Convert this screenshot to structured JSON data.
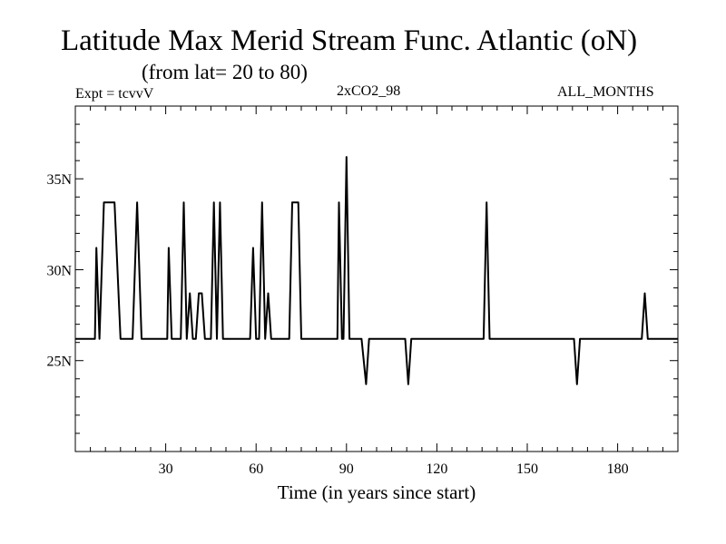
{
  "header": {
    "title": "Latitude Max Merid Stream Func. Atlantic (oN)",
    "subtitle": "(from lat= 20 to 80)",
    "left_label": "Expt = tcvvV",
    "center_label": "2xCO2_98",
    "right_label": "ALL_MONTHS"
  },
  "colors": {
    "line": "#000000",
    "frame": "#000000",
    "background": "#ffffff"
  },
  "chart_data": {
    "type": "line",
    "title": "Latitude Max Merid Stream Func. Atlantic (oN)",
    "subtitle": "(from lat= 20 to 80)",
    "xlabel": "Time (in years since start)",
    "ylabel": "",
    "xlim": [
      0,
      200
    ],
    "ylim": [
      20,
      39
    ],
    "grid": false,
    "x_ticks": [
      30,
      60,
      90,
      120,
      150,
      180
    ],
    "x_tick_labels": [
      "30",
      "60",
      "90",
      "120",
      "150",
      "180"
    ],
    "y_ticks": [
      25,
      30,
      35
    ],
    "y_tick_labels": [
      "25N",
      "30N",
      "35N"
    ],
    "series": [
      {
        "values": [
          [
            0,
            26.2
          ],
          [
            6.5,
            26.2
          ],
          [
            7,
            31.2
          ],
          [
            8,
            26.2
          ],
          [
            9,
            31.2
          ],
          [
            9.5,
            33.7
          ],
          [
            13,
            33.7
          ],
          [
            15,
            26.2
          ],
          [
            19,
            26.2
          ],
          [
            20.5,
            33.7
          ],
          [
            22,
            26.2
          ],
          [
            30.5,
            26.2
          ],
          [
            31,
            31.2
          ],
          [
            32,
            26.2
          ],
          [
            35,
            26.2
          ],
          [
            36,
            33.7
          ],
          [
            37,
            26.2
          ],
          [
            38,
            28.7
          ],
          [
            39,
            26.2
          ],
          [
            40,
            26.2
          ],
          [
            41,
            28.7
          ],
          [
            42,
            28.7
          ],
          [
            43,
            26.2
          ],
          [
            45,
            26.2
          ],
          [
            46,
            33.7
          ],
          [
            47,
            26.2
          ],
          [
            48,
            33.7
          ],
          [
            49,
            26.2
          ],
          [
            58,
            26.2
          ],
          [
            59,
            31.2
          ],
          [
            60,
            26.2
          ],
          [
            61,
            26.2
          ],
          [
            62,
            33.7
          ],
          [
            63,
            26.2
          ],
          [
            64,
            28.7
          ],
          [
            65,
            26.2
          ],
          [
            71,
            26.2
          ],
          [
            72,
            33.7
          ],
          [
            74,
            33.7
          ],
          [
            75,
            26.2
          ],
          [
            87,
            26.2
          ],
          [
            87.5,
            33.7
          ],
          [
            88.5,
            26.2
          ],
          [
            89,
            26.2
          ],
          [
            90,
            36.2
          ],
          [
            91,
            26.2
          ],
          [
            95,
            26.2
          ],
          [
            96.5,
            23.7
          ],
          [
            97.5,
            26.2
          ],
          [
            109.5,
            26.2
          ],
          [
            110.5,
            23.7
          ],
          [
            111.5,
            26.2
          ],
          [
            135.5,
            26.2
          ],
          [
            136.5,
            33.7
          ],
          [
            137.5,
            26.2
          ],
          [
            165.5,
            26.2
          ],
          [
            166.5,
            23.7
          ],
          [
            167.5,
            26.2
          ],
          [
            188,
            26.2
          ],
          [
            189,
            28.7
          ],
          [
            190,
            26.2
          ],
          [
            200,
            26.2
          ]
        ]
      }
    ]
  }
}
